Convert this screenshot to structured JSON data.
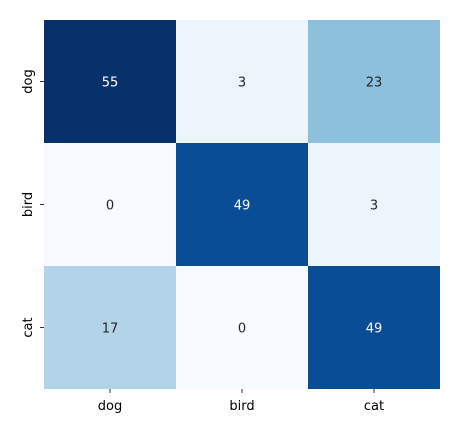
{
  "chart_data": {
    "type": "heatmap",
    "title": "",
    "xlabel": "",
    "ylabel": "",
    "x_categories": [
      "dog",
      "bird",
      "cat"
    ],
    "y_categories": [
      "dog",
      "bird",
      "cat"
    ],
    "values": [
      [
        55,
        3,
        23
      ],
      [
        0,
        49,
        3
      ],
      [
        17,
        0,
        49
      ]
    ],
    "colormap": "Blues",
    "colorbar": false,
    "grid": false
  }
}
